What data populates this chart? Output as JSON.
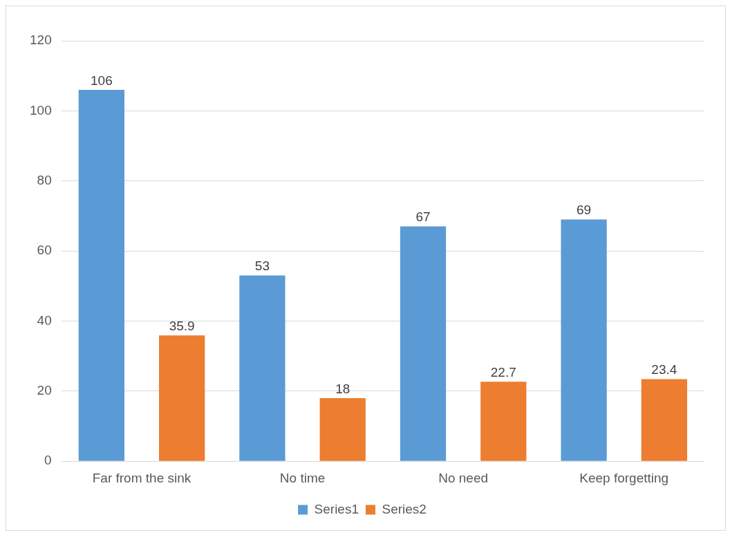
{
  "chart_data": {
    "type": "bar",
    "categories": [
      "Far from the sink",
      "No time",
      "No need",
      "Keep forgetting"
    ],
    "series": [
      {
        "name": "Series1",
        "color": "#5b9bd5",
        "values": [
          106,
          53,
          67,
          69
        ]
      },
      {
        "name": "Series2",
        "color": "#ed7d31",
        "values": [
          35.9,
          18,
          22.7,
          23.4
        ]
      }
    ],
    "ylim": [
      0,
      120
    ],
    "yticks": [
      0,
      20,
      40,
      60,
      80,
      100,
      120
    ],
    "grid": "y",
    "legend": "bottom",
    "data_labels": true
  }
}
